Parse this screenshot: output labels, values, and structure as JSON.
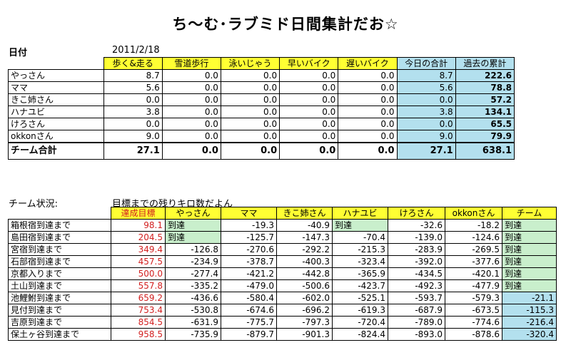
{
  "title": "ち～む･ラブミド日間集計だお☆",
  "date_label": "日付",
  "date_value": "2011/2/18",
  "daily": {
    "columns": [
      "歩く&走る",
      "雪道歩行",
      "泳いじゃう",
      "早いバイク",
      "遅いバイク",
      "今日の合計",
      "過去の累計"
    ],
    "rows": [
      {
        "name": "やっさん",
        "values": [
          "8.7",
          "0.0",
          "0.0",
          "0.0",
          "0.0",
          "8.7",
          "222.6"
        ]
      },
      {
        "name": "ママ",
        "values": [
          "5.6",
          "0.0",
          "0.0",
          "0.0",
          "0.0",
          "5.6",
          "78.8"
        ]
      },
      {
        "name": "きこ姉さん",
        "values": [
          "0.0",
          "0.0",
          "0.0",
          "0.0",
          "0.0",
          "0.0",
          "57.2"
        ]
      },
      {
        "name": "ハナユビ",
        "values": [
          "3.8",
          "0.0",
          "0.0",
          "0.0",
          "0.0",
          "3.8",
          "134.1"
        ]
      },
      {
        "name": "けろさん",
        "values": [
          "0.0",
          "0.0",
          "0.0",
          "0.0",
          "0.0",
          "0.0",
          "65.5"
        ]
      },
      {
        "name": "okkonさん",
        "values": [
          "9.0",
          "0.0",
          "0.0",
          "0.0",
          "0.0",
          "9.0",
          "79.9"
        ]
      }
    ],
    "total": {
      "name": "チーム合計",
      "values": [
        "27.1",
        "0.0",
        "0.0",
        "0.0",
        "0.0",
        "27.1",
        "638.1"
      ]
    }
  },
  "status_label": "チーム状況:",
  "status_sub": "目標までの残りキロ数だよん",
  "status": {
    "columns": [
      "達成目標",
      "やっさん",
      "ママ",
      "きこ姉さん",
      "ハナユビ",
      "けろさん",
      "okkonさん",
      "チーム"
    ],
    "rows": [
      {
        "name": "箱根宿到達まで",
        "values": [
          "98.1",
          "到達",
          "-19.3",
          "-40.9",
          "到達",
          "-32.6",
          "-18.2",
          "到達"
        ]
      },
      {
        "name": "島田宿到達まで",
        "values": [
          "204.5",
          "到達",
          "-125.7",
          "-147.3",
          "-70.4",
          "-139.0",
          "-124.6",
          "到達"
        ]
      },
      {
        "name": "宮宿到達まで",
        "values": [
          "349.4",
          "-126.8",
          "-270.6",
          "-292.2",
          "-215.3",
          "-283.9",
          "-269.5",
          "到達"
        ]
      },
      {
        "name": "石部宿到達まで",
        "values": [
          "457.5",
          "-234.9",
          "-378.7",
          "-400.3",
          "-323.4",
          "-392.0",
          "-377.6",
          "到達"
        ]
      },
      {
        "name": "京都入りまで",
        "values": [
          "500.0",
          "-277.4",
          "-421.2",
          "-442.8",
          "-365.9",
          "-434.5",
          "-420.1",
          "到達"
        ]
      },
      {
        "name": "土山到達まで",
        "values": [
          "557.8",
          "-335.2",
          "-479.0",
          "-500.6",
          "-423.7",
          "-492.3",
          "-477.9",
          "到達"
        ]
      },
      {
        "name": "池鯉鮒到達まで",
        "values": [
          "659.2",
          "-436.6",
          "-580.4",
          "-602.0",
          "-525.1",
          "-593.7",
          "-579.3",
          "-21.1"
        ]
      },
      {
        "name": "見付到達まで",
        "values": [
          "753.4",
          "-530.8",
          "-674.6",
          "-696.2",
          "-619.3",
          "-687.9",
          "-673.5",
          "-115.3"
        ]
      },
      {
        "name": "吉原到達まで",
        "values": [
          "854.5",
          "-631.9",
          "-775.7",
          "-797.3",
          "-720.4",
          "-789.0",
          "-774.6",
          "-216.4"
        ]
      },
      {
        "name": "保土ヶ谷到達まで",
        "values": [
          "958.5",
          "-735.9",
          "-879.7",
          "-901.3",
          "-824.4",
          "-893.0",
          "-878.6",
          "-320.4"
        ]
      }
    ]
  }
}
